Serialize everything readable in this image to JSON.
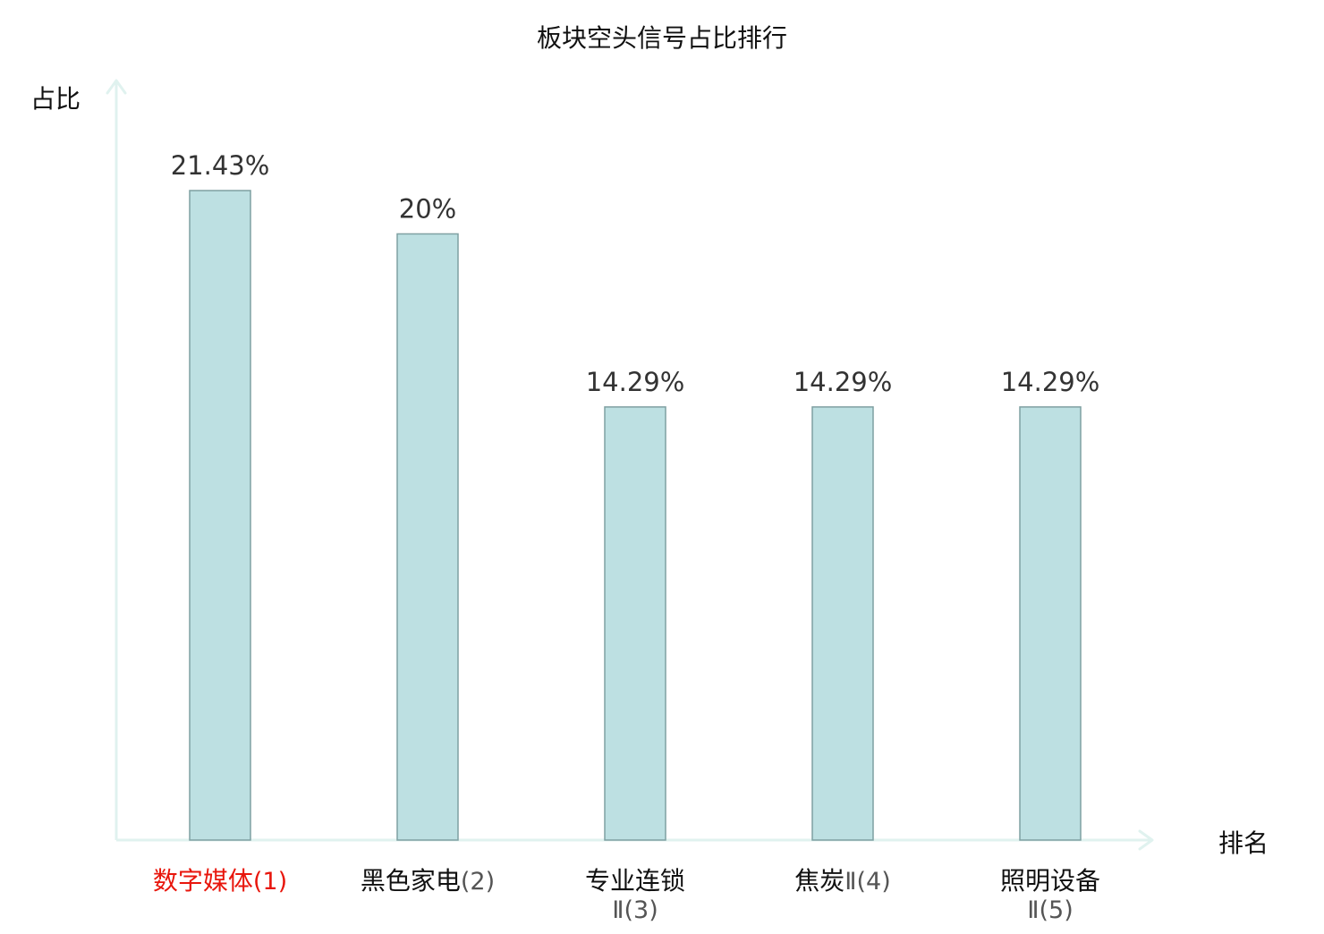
{
  "chart_data": {
    "type": "bar",
    "title": "板块空头信号占比排行",
    "ylabel": "占比",
    "xlabel": "排名",
    "categories": [
      {
        "name": "数字媒体",
        "rank": "(1)",
        "highlight": true
      },
      {
        "name": "黑色家电",
        "rank": "(2)",
        "highlight": false
      },
      {
        "name": "专业连锁",
        "rank": "Ⅱ(3)",
        "highlight": false
      },
      {
        "name": "焦炭",
        "rank": "Ⅱ(4)",
        "highlight": false
      },
      {
        "name": "照明设备",
        "rank": "Ⅱ(5)",
        "highlight": false
      }
    ],
    "values": [
      21.43,
      20,
      14.29,
      14.29,
      14.29
    ],
    "value_labels": [
      "21.43%",
      "20%",
      "14.29%",
      "14.29%",
      "14.29%"
    ],
    "ylim": [
      0,
      25
    ],
    "grid": false,
    "legend": "none",
    "colors": {
      "bar_fill": "#bde0e2",
      "bar_stroke": "#7fa0a2",
      "axis": "#e0f2ef",
      "text": "#333333",
      "highlight": "#e8160c"
    }
  }
}
